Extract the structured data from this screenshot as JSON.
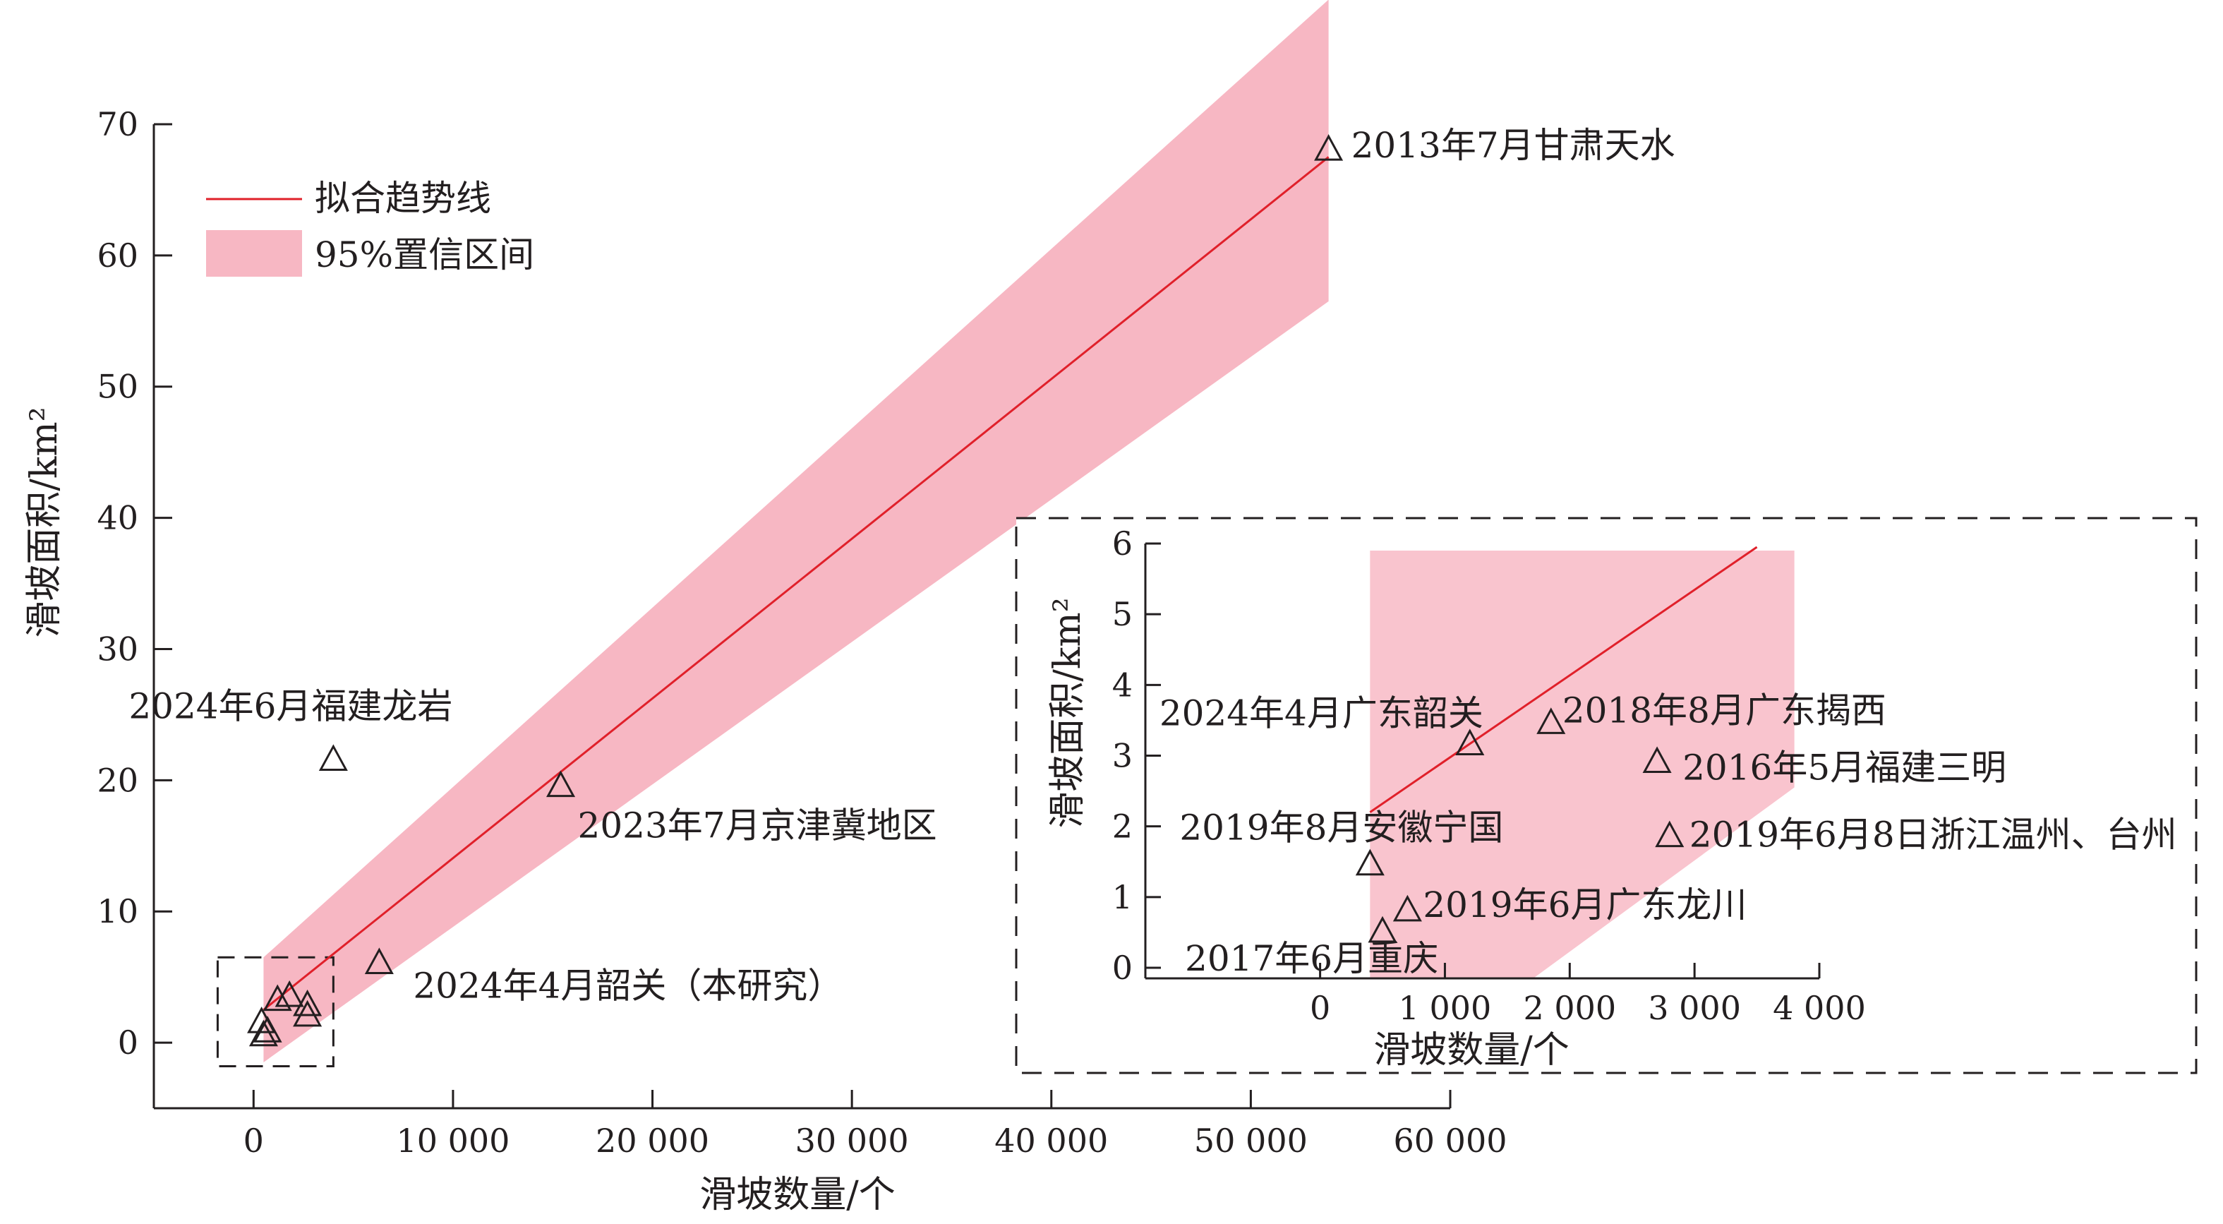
{
  "colors": {
    "band": "#f7b7c3",
    "band_inset": "#f9c4ce",
    "trend": "#e0202a",
    "axis": "#231f20"
  },
  "legend": {
    "line_label": "拟合趋势线",
    "band_label": "95%置信区间"
  },
  "chart_data": [
    {
      "type": "scatter",
      "xlabel": "滑坡数量/个",
      "ylabel": "滑坡面积/km²",
      "xlim": [
        -5000,
        60000
      ],
      "ylim": [
        -5,
        70
      ],
      "xticks": [
        0,
        10000,
        20000,
        30000,
        40000,
        50000,
        60000
      ],
      "xtick_labels": [
        "0",
        "10 000",
        "20 000",
        "30 000",
        "40 000",
        "50 000",
        "60 000"
      ],
      "yticks": [
        0,
        10,
        20,
        30,
        40,
        50,
        60,
        70
      ],
      "ytick_labels": [
        "0",
        "10",
        "20",
        "30",
        "40",
        "50",
        "60",
        "70"
      ],
      "grid": false,
      "legend_position": "top-left",
      "marker": "open-triangle",
      "points": [
        {
          "x": 53900,
          "y": 68.0,
          "label": "2013年7月甘肃天水"
        },
        {
          "x": 4000,
          "y": 21.5,
          "label": "2024年6月福建龙岩"
        },
        {
          "x": 15400,
          "y": 19.5,
          "label": "2023年7月京津冀地区"
        },
        {
          "x": 6300,
          "y": 6.0,
          "label": "2024年4月韶关（本研究）"
        },
        {
          "x": 1200,
          "y": 3.2,
          "label": ""
        },
        {
          "x": 1800,
          "y": 3.5,
          "label": ""
        },
        {
          "x": 2700,
          "y": 2.8,
          "label": ""
        },
        {
          "x": 2700,
          "y": 2.0,
          "label": ""
        },
        {
          "x": 400,
          "y": 1.5,
          "label": ""
        },
        {
          "x": 500,
          "y": 0.5,
          "label": ""
        },
        {
          "x": 700,
          "y": 0.8,
          "label": ""
        }
      ],
      "trend_line": {
        "x": [
          500,
          53900
        ],
        "y": [
          2.5,
          67.5
        ]
      },
      "confidence_band": {
        "x": [
          500,
          53900
        ],
        "upper": [
          6.5,
          79.5
        ],
        "lower": [
          -1.5,
          56.5
        ]
      },
      "highlight_box": {
        "xlim": [
          -1800,
          4000
        ],
        "ylim": [
          -1.8,
          6.5
        ]
      }
    },
    {
      "type": "scatter",
      "xlabel": "滑坡数量/个",
      "ylabel": "滑坡面积/km²",
      "xlim": [
        -1400,
        4000
      ],
      "ylim": [
        -0.15,
        6
      ],
      "xticks": [
        0,
        1000,
        2000,
        3000,
        4000
      ],
      "xtick_labels": [
        "0",
        "1 000",
        "2 000",
        "3 000",
        "4 000"
      ],
      "yticks": [
        0,
        1,
        2,
        3,
        4,
        5,
        6
      ],
      "ytick_labels": [
        "0",
        "1",
        "2",
        "3",
        "4",
        "5",
        "6"
      ],
      "grid": false,
      "marker": "open-triangle",
      "points": [
        {
          "x": 1200,
          "y": 3.15,
          "label": "2024年4月广东韶关"
        },
        {
          "x": 1850,
          "y": 3.45,
          "label": "2018年8月广东揭西"
        },
        {
          "x": 2700,
          "y": 2.9,
          "label": "2016年5月福建三明"
        },
        {
          "x": 400,
          "y": 1.45,
          "label": "2019年8月安徽宁国"
        },
        {
          "x": 2800,
          "y": 1.85,
          "label": "2019年6月8日浙江温州、台州"
        },
        {
          "x": 700,
          "y": 0.8,
          "label": "2019年6月广东龙川"
        },
        {
          "x": 500,
          "y": 0.5,
          "label": "2017年6月重庆"
        }
      ],
      "trend_line": {
        "x": [
          400,
          3500
        ],
        "y": [
          2.2,
          5.95
        ]
      },
      "confidence_band": {
        "x": [
          400,
          3800
        ],
        "upper": [
          5.9,
          5.9
        ],
        "lower": [
          0.1,
          2.55
        ]
      }
    }
  ]
}
